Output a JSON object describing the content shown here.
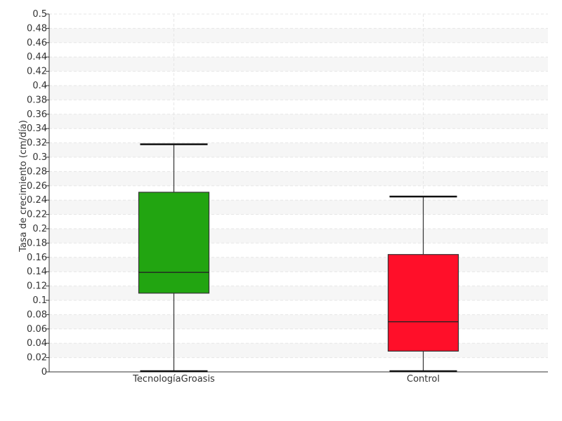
{
  "chart_data": {
    "type": "box",
    "title": "",
    "xlabel": "",
    "ylabel": "Tasa de crecimiento (cm/día)",
    "ylim": [
      0,
      0.5
    ],
    "ytick_step": 0.02,
    "grid": true,
    "legend": "none",
    "categories": [
      "TecnologíaGroasis",
      "Control"
    ],
    "series": [
      {
        "category": "TecnologíaGroasis",
        "min": 0.001,
        "q1": 0.11,
        "median": 0.139,
        "q3": 0.251,
        "max": 0.318,
        "color": "#22a511"
      },
      {
        "category": "Control",
        "min": 0.001,
        "q1": 0.029,
        "median": 0.07,
        "q3": 0.164,
        "max": 0.245,
        "color": "#ff0f29"
      }
    ]
  }
}
